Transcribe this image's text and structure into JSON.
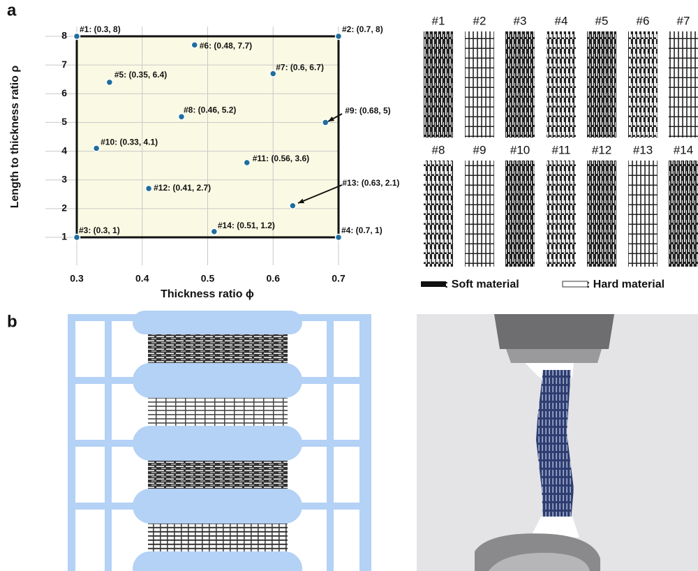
{
  "chart_data": {
    "type": "scatter",
    "xlabel": "Thickness ratio ϕ",
    "ylabel": "Length to thickness ratio ρ",
    "x": [
      0.3,
      0.7,
      0.3,
      0.7,
      0.35,
      0.48,
      0.6,
      0.46,
      0.68,
      0.33,
      0.56,
      0.41,
      0.63,
      0.51
    ],
    "values": [
      8,
      8,
      1,
      1,
      6.4,
      7.7,
      6.7,
      5.2,
      5,
      4.1,
      3.6,
      2.7,
      2.1,
      1.2
    ],
    "labels": [
      "#1: (0.3, 8)",
      "#2: (0.7, 8)",
      "#3: (0.3, 1)",
      "#4: (0.7, 1)",
      "#5: (0.35, 6.4)",
      "#6: (0.48, 7.7)",
      "#7: (0.6, 6.7)",
      "#8: (0.46, 5.2)",
      "#9: (0.68, 5)",
      "#10: (0.33, 4.1)",
      "#11: (0.56, 3.6)",
      "#12: (0.41, 2.7)",
      "#13: (0.63, 2.1)",
      "#14: (0.51, 1.2)"
    ],
    "color": "#1f6e9c",
    "xlim": [
      0.3,
      0.7
    ],
    "ylim": [
      1,
      8
    ],
    "xticks": [
      0.3,
      0.4,
      0.5,
      0.6,
      0.7
    ],
    "yticks": [
      1,
      2,
      3,
      4,
      5,
      6,
      7,
      8
    ],
    "grid": true
  },
  "panels": {
    "labels": [
      "a",
      "b"
    ],
    "samples": [
      "#1",
      "#2",
      "#3",
      "#4",
      "#5",
      "#6",
      "#7",
      "#8",
      "#9",
      "#10",
      "#11",
      "#12",
      "#13",
      "#14"
    ],
    "legend": [
      ": Soft material",
      ": Hard material"
    ]
  }
}
